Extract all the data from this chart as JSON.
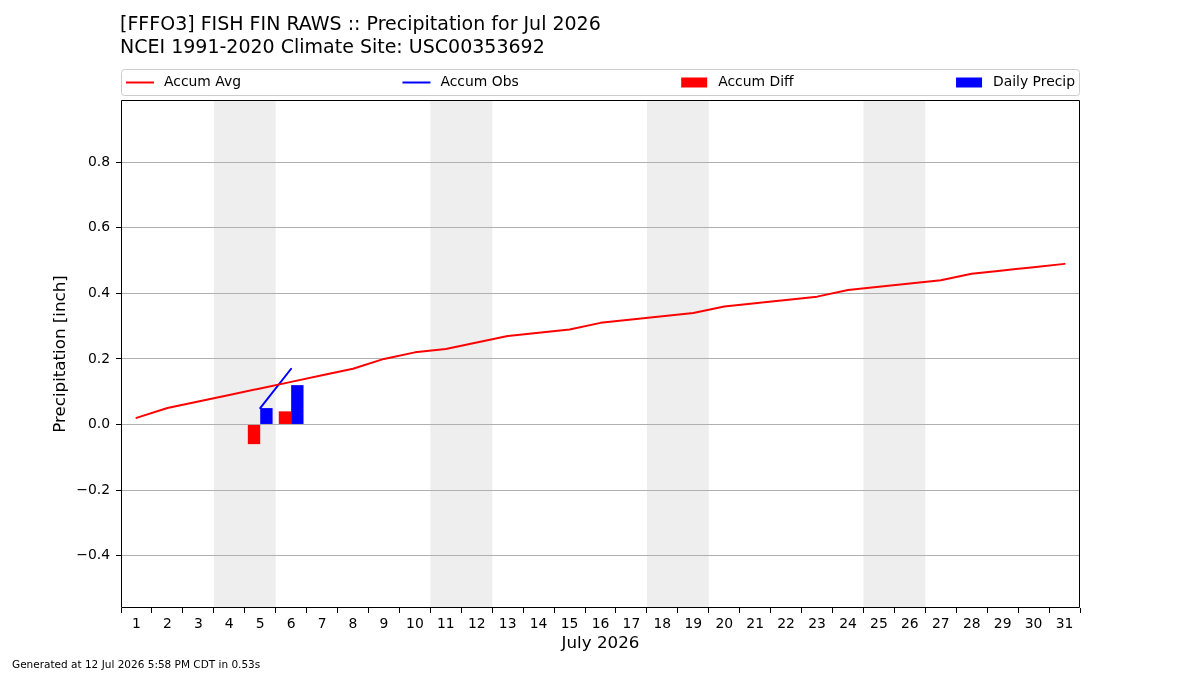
{
  "chart_data": {
    "type": "line",
    "title": "[FFFO3] FISH FIN RAWS :: Precipitation for Jul 2026",
    "subtitle": "NCEI 1991-2020 Climate Site: USC00353692",
    "xlabel": "July 2026",
    "ylabel": "Precipitation [inch]",
    "annotations": [
      "Generated at 12 Jul 2026 5:58 PM CDT in 0.53s"
    ],
    "series": [
      {
        "name": "Accum Avg",
        "color": "#ff0000",
        "x": [
          1,
          2,
          3,
          4,
          5,
          6,
          7,
          8,
          9,
          10,
          11,
          12,
          13,
          14,
          15,
          16,
          17,
          18,
          19,
          20,
          21,
          22,
          23,
          24,
          25,
          26,
          27,
          28,
          29,
          30,
          31
        ],
        "values": [
          0.02,
          0.05,
          0.07,
          0.09,
          0.11,
          0.13,
          0.15,
          0.17,
          0.2,
          0.22,
          0.23,
          0.25,
          0.27,
          0.28,
          0.29,
          0.31,
          0.32,
          0.33,
          0.34,
          0.36,
          0.37,
          0.38,
          0.39,
          0.41,
          0.42,
          0.43,
          0.44,
          0.46,
          0.47,
          0.48,
          0.49
        ]
      },
      {
        "name": "Accum Obs",
        "color": "#0000ff",
        "x": [
          5,
          6
        ],
        "values": [
          0.05,
          0.17
        ]
      },
      {
        "name": "Accum Diff",
        "type": "bar",
        "color": "#ff0000",
        "x": [
          5,
          6
        ],
        "values": [
          -0.06,
          0.04
        ]
      },
      {
        "name": "Daily Precip",
        "type": "bar",
        "color": "#0000ff",
        "x": [
          5,
          6
        ],
        "values": [
          0.05,
          0.12
        ]
      }
    ],
    "xlim": [
      0.5,
      31.5
    ],
    "xticks": [
      1,
      2,
      3,
      4,
      5,
      6,
      7,
      8,
      9,
      10,
      11,
      12,
      13,
      14,
      15,
      16,
      17,
      18,
      19,
      20,
      21,
      22,
      23,
      24,
      25,
      26,
      27,
      28,
      29,
      30,
      31
    ],
    "ylim": [
      -0.56,
      0.99
    ],
    "yticks": [
      {
        "value": -0.4,
        "label": "−0.4"
      },
      {
        "value": -0.2,
        "label": "−0.2"
      },
      {
        "value": 0,
        "label": "0.0"
      },
      0.2,
      0.4,
      0.6,
      0.8
    ],
    "bands": [
      {
        "axis": "x",
        "from": 3.5,
        "to": 5.5,
        "color": "#eeeeee"
      },
      {
        "axis": "x",
        "from": 10.5,
        "to": 12.5,
        "color": "#eeeeee"
      },
      {
        "axis": "x",
        "from": 17.5,
        "to": 19.5,
        "color": "#eeeeee"
      },
      {
        "axis": "x",
        "from": 24.5,
        "to": 26.5,
        "color": "#eeeeee"
      }
    ],
    "grid": "y",
    "legend": "top",
    "marker": "none"
  }
}
